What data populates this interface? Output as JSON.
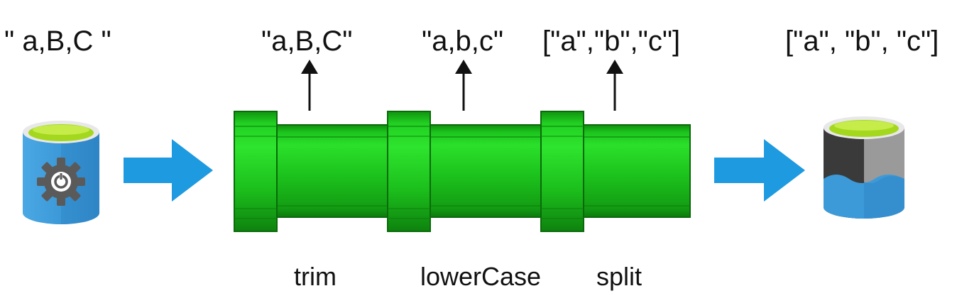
{
  "input": {
    "value": "\" a,B,C \"",
    "icon": "database-gear-icon"
  },
  "stages": [
    {
      "name": "trim",
      "output": "\"a,B,C\""
    },
    {
      "name": "lowerCase",
      "output": "\"a,b,c\""
    },
    {
      "name": "split",
      "output": "[\"a\",\"b\",\"c\"]"
    }
  ],
  "output": {
    "value": "[\"a\", \"b\", \"c\"]",
    "icon": "data-lake-icon"
  },
  "colors": {
    "pipe_green": "#1fc21f",
    "pipe_dark": "#0c7a0c",
    "arrow_blue": "#1e9ae0",
    "db_blue": "#3d9ad8",
    "db_lime": "#a3d81e"
  }
}
